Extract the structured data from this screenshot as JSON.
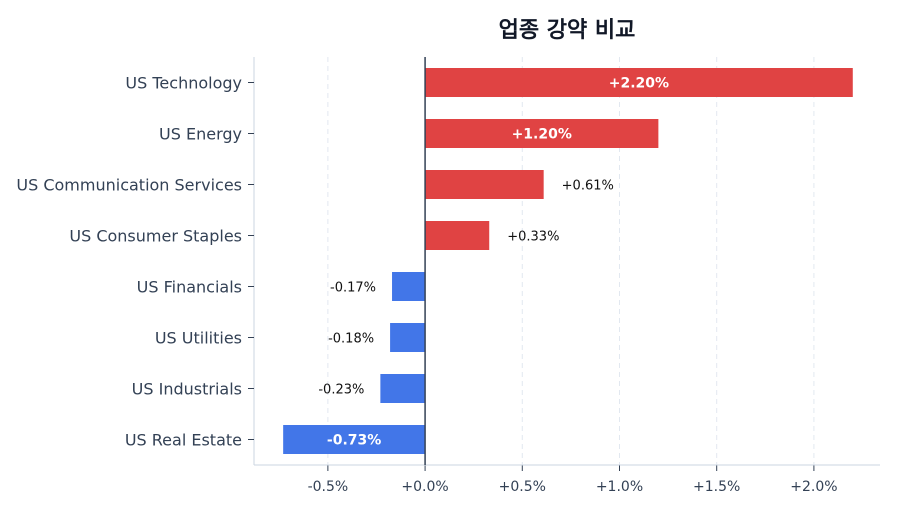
{
  "chart_data": {
    "type": "bar",
    "orientation": "horizontal",
    "title": "업종 강약 비교",
    "xlabel": "",
    "ylabel": "",
    "categories": [
      "US Technology",
      "US Energy",
      "US Communication Services",
      "US Consumer Staples",
      "US Financials",
      "US Utilities",
      "US Industrials",
      "US Real Estate"
    ],
    "values": [
      2.2,
      1.2,
      0.61,
      0.33,
      -0.17,
      -0.18,
      -0.23,
      -0.73
    ],
    "data_labels": [
      "+2.20%",
      "+1.20%",
      "+0.61%",
      "+0.33%",
      "-0.17%",
      "-0.18%",
      "-0.23%",
      "-0.73%"
    ],
    "xlim": [
      -0.88,
      2.34
    ],
    "xticks": [
      -0.5,
      0.0,
      0.5,
      1.0,
      1.5,
      2.0
    ],
    "xtick_labels": [
      "-0.5%",
      "+0.0%",
      "+0.5%",
      "+1.0%",
      "+1.5%",
      "+2.0%"
    ],
    "grid": "vertical dashed",
    "colors": {
      "positive": "#e04343",
      "negative": "#4276e8"
    }
  }
}
